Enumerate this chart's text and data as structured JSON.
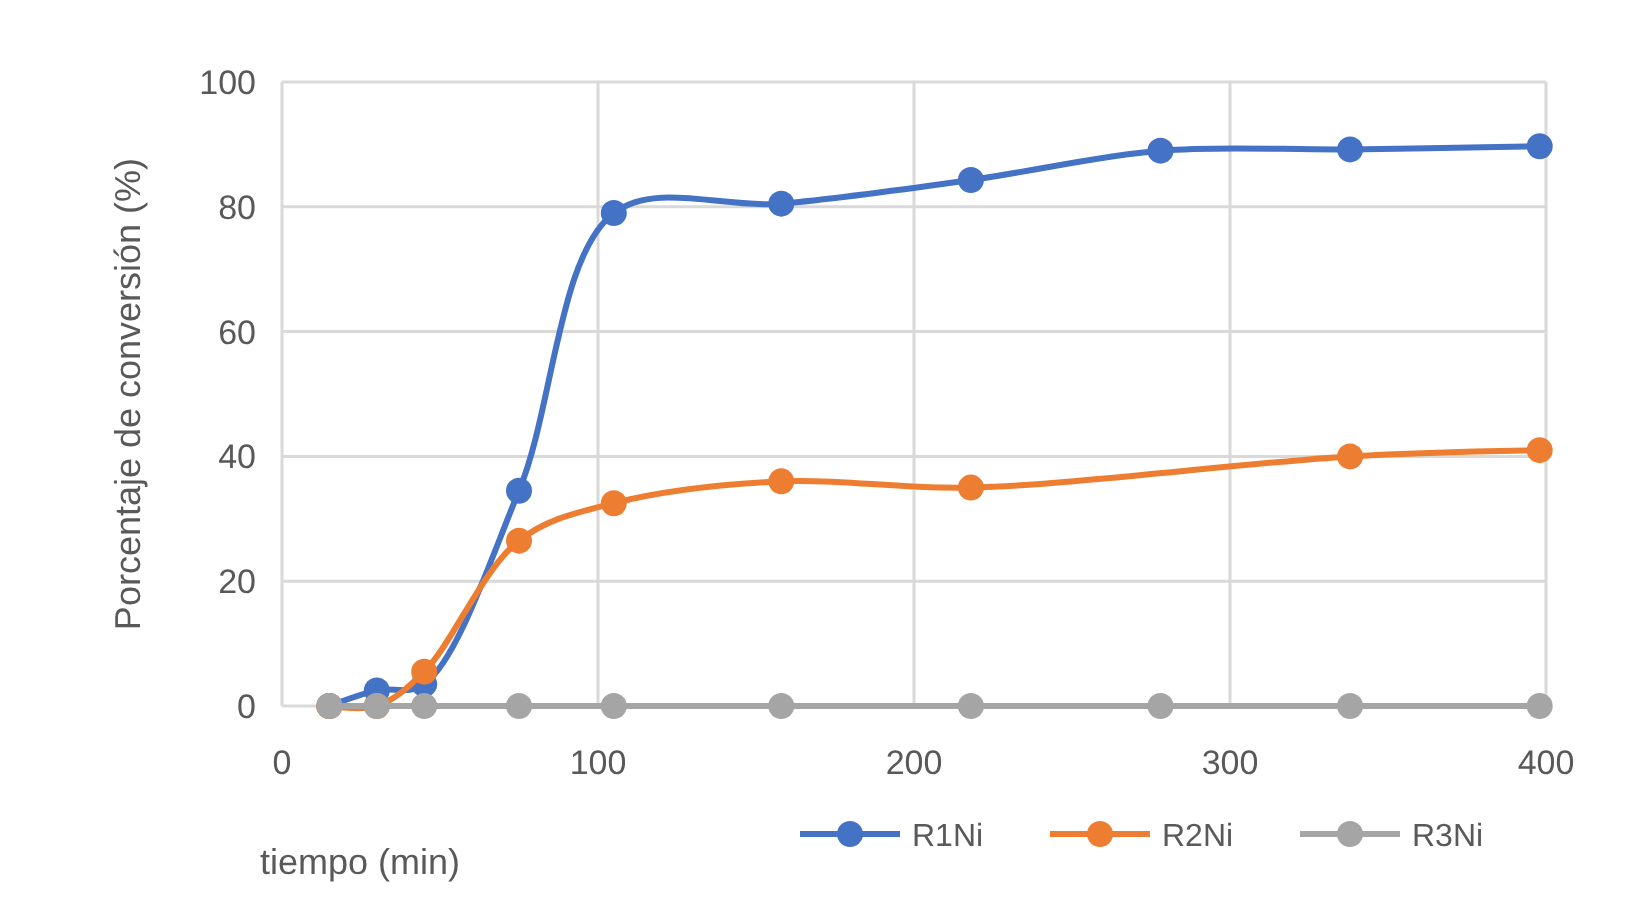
{
  "chart_data": {
    "type": "line",
    "xlabel": "tiempo (min)",
    "ylabel": "Porcentaje de conversión (%)",
    "xlim": [
      0,
      400
    ],
    "xticks": [
      0,
      100,
      200,
      300,
      400
    ],
    "ylim": [
      0,
      100
    ],
    "yticks": [
      0,
      20,
      40,
      60,
      80,
      100
    ],
    "grid": true,
    "legend": "bottom right",
    "marker": "circle",
    "line_style": "solid",
    "series": [
      {
        "name": "R1Ni",
        "color": "#4472c4",
        "x": [
          15,
          30,
          45,
          75,
          105,
          158,
          218,
          278,
          338,
          398
        ],
        "values": [
          0,
          2.5,
          3.5,
          34.5,
          79,
          80.5,
          84.3,
          89,
          89.2,
          89.7
        ]
      },
      {
        "name": "R2Ni",
        "color": "#ed7d31",
        "x": [
          15,
          30,
          45,
          75,
          105,
          158,
          218,
          338,
          398
        ],
        "values": [
          0,
          0,
          5.5,
          26.5,
          32.5,
          36,
          35,
          40,
          41
        ]
      },
      {
        "name": "R3Ni",
        "color": "#a5a5a5",
        "x": [
          15,
          30,
          45,
          75,
          105,
          158,
          218,
          278,
          338,
          398
        ],
        "values": [
          0,
          0,
          0,
          0,
          0,
          0,
          0,
          0,
          0,
          0
        ]
      }
    ]
  }
}
